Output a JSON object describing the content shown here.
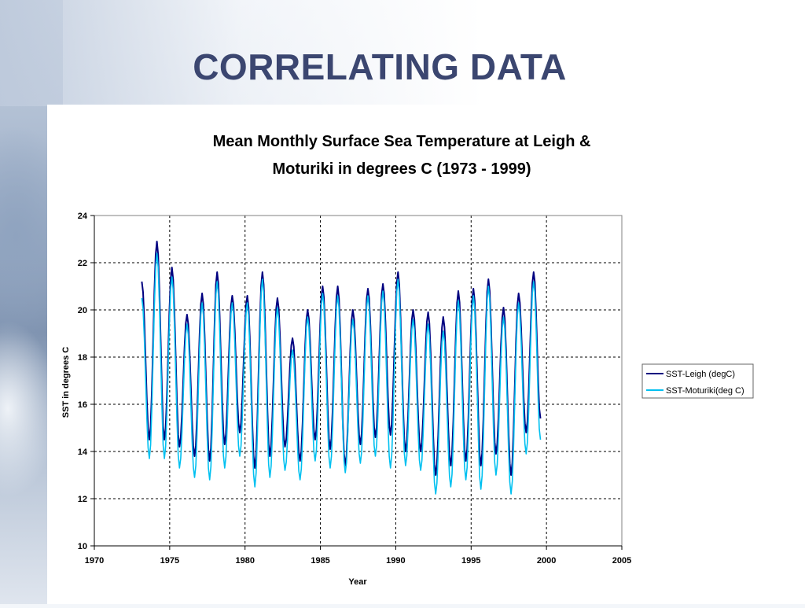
{
  "slide": {
    "title": "CORRELATING DATA"
  },
  "chart_data": {
    "type": "line",
    "title_line1": "Mean Monthly Surface Sea Temperature at Leigh &",
    "title_line2": "Moturiki in degrees C (1973 - 1999)",
    "xlabel": "Year",
    "ylabel": "SST in degrees C",
    "xlim": [
      1970,
      2005
    ],
    "ylim": [
      10,
      24
    ],
    "x_ticks": [
      "1970",
      "1975",
      "1980",
      "1985",
      "1990",
      "1995",
      "2000",
      "2005"
    ],
    "y_ticks": [
      "10",
      "12",
      "14",
      "16",
      "18",
      "20",
      "22",
      "24"
    ],
    "grid": true,
    "legend_position": "right",
    "series": [
      {
        "name": "SST-Leigh (degC)",
        "color": "#000080",
        "annual_peaks": [
          [
            1973.15,
            21.2
          ],
          [
            1974.15,
            22.9
          ],
          [
            1975.15,
            21.8
          ],
          [
            1976.15,
            19.8
          ],
          [
            1977.15,
            20.7
          ],
          [
            1978.15,
            21.6
          ],
          [
            1979.15,
            20.6
          ],
          [
            1980.15,
            20.6
          ],
          [
            1981.15,
            21.6
          ],
          [
            1982.15,
            20.5
          ],
          [
            1983.15,
            18.8
          ],
          [
            1984.15,
            20.0
          ],
          [
            1985.15,
            21.0
          ],
          [
            1986.15,
            21.0
          ],
          [
            1987.15,
            20.0
          ],
          [
            1988.15,
            20.9
          ],
          [
            1989.15,
            21.1
          ],
          [
            1990.15,
            21.6
          ],
          [
            1991.15,
            20.0
          ],
          [
            1992.15,
            19.9
          ],
          [
            1993.15,
            19.7
          ],
          [
            1994.15,
            20.8
          ],
          [
            1995.15,
            20.9
          ],
          [
            1996.15,
            21.3
          ],
          [
            1997.15,
            20.1
          ],
          [
            1998.15,
            20.7
          ],
          [
            1999.15,
            21.6
          ]
        ],
        "annual_troughs": [
          [
            1973.65,
            14.5
          ],
          [
            1974.65,
            14.5
          ],
          [
            1975.65,
            14.2
          ],
          [
            1976.65,
            13.8
          ],
          [
            1977.65,
            13.6
          ],
          [
            1978.65,
            14.3
          ],
          [
            1979.65,
            14.8
          ],
          [
            1980.65,
            13.3
          ],
          [
            1981.65,
            13.8
          ],
          [
            1982.65,
            14.2
          ],
          [
            1983.65,
            13.6
          ],
          [
            1984.65,
            14.5
          ],
          [
            1985.65,
            14.1
          ],
          [
            1986.65,
            13.4
          ],
          [
            1987.65,
            14.3
          ],
          [
            1988.65,
            14.6
          ],
          [
            1989.65,
            14.7
          ],
          [
            1990.65,
            14.0
          ],
          [
            1991.65,
            14.0
          ],
          [
            1992.65,
            13.0
          ],
          [
            1993.65,
            13.4
          ],
          [
            1994.65,
            13.6
          ],
          [
            1995.65,
            13.4
          ],
          [
            1996.65,
            13.9
          ],
          [
            1997.65,
            13.0
          ],
          [
            1998.65,
            14.8
          ]
        ],
        "end": [
          1999.6,
          15.4
        ]
      },
      {
        "name": "SST-Moturiki(deg C)",
        "color": "#00c0f0",
        "annual_peaks": [
          [
            1973.15,
            20.5
          ],
          [
            1974.15,
            22.4
          ],
          [
            1975.15,
            21.4
          ],
          [
            1976.15,
            19.4
          ],
          [
            1977.15,
            20.3
          ],
          [
            1978.15,
            21.2
          ],
          [
            1979.15,
            20.3
          ],
          [
            1980.15,
            20.3
          ],
          [
            1981.15,
            21.3
          ],
          [
            1982.15,
            20.1
          ],
          [
            1983.15,
            18.3
          ],
          [
            1984.15,
            19.7
          ],
          [
            1985.15,
            20.7
          ],
          [
            1986.15,
            20.6
          ],
          [
            1987.15,
            19.6
          ],
          [
            1988.15,
            20.6
          ],
          [
            1989.15,
            20.8
          ],
          [
            1990.15,
            21.3
          ],
          [
            1991.15,
            19.6
          ],
          [
            1992.15,
            19.4
          ],
          [
            1993.15,
            19.1
          ],
          [
            1994.15,
            20.4
          ],
          [
            1995.15,
            20.6
          ],
          [
            1996.15,
            21.0
          ],
          [
            1997.15,
            19.7
          ],
          [
            1998.15,
            20.3
          ],
          [
            1999.15,
            21.2
          ]
        ],
        "annual_troughs": [
          [
            1973.65,
            13.7
          ],
          [
            1974.65,
            13.7
          ],
          [
            1975.65,
            13.3
          ],
          [
            1976.65,
            12.9
          ],
          [
            1977.65,
            12.8
          ],
          [
            1978.65,
            13.3
          ],
          [
            1979.65,
            13.8
          ],
          [
            1980.65,
            12.5
          ],
          [
            1981.65,
            12.9
          ],
          [
            1982.65,
            13.2
          ],
          [
            1983.65,
            12.8
          ],
          [
            1984.65,
            13.6
          ],
          [
            1985.65,
            13.3
          ],
          [
            1986.65,
            13.1
          ],
          [
            1987.65,
            13.5
          ],
          [
            1988.65,
            13.8
          ],
          [
            1989.65,
            13.3
          ],
          [
            1990.65,
            13.4
          ],
          [
            1991.65,
            13.2
          ],
          [
            1992.65,
            12.2
          ],
          [
            1993.65,
            12.5
          ],
          [
            1994.65,
            12.8
          ],
          [
            1995.65,
            12.4
          ],
          [
            1996.65,
            13.0
          ],
          [
            1997.65,
            12.2
          ],
          [
            1998.65,
            13.9
          ]
        ],
        "end": [
          1999.6,
          14.5
        ]
      }
    ]
  }
}
